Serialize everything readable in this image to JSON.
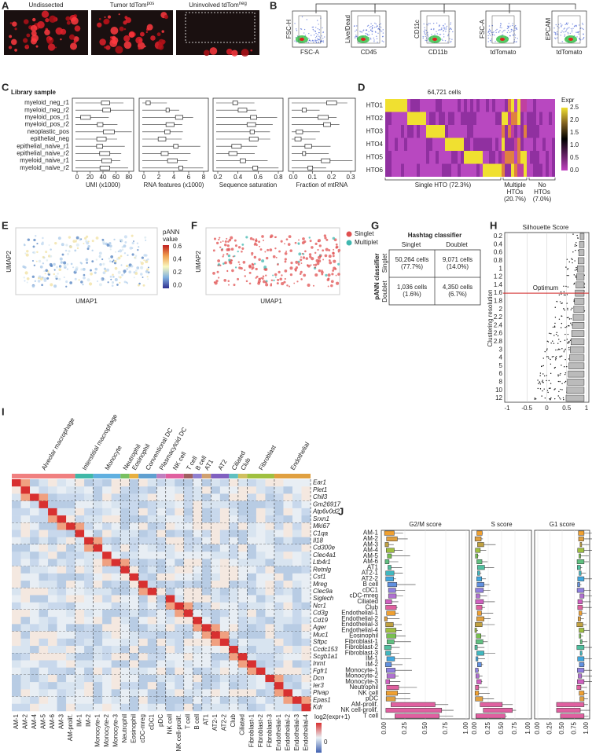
{
  "A": {
    "letter": "A",
    "labels": [
      {
        "text": "Undissected"
      },
      {
        "text": "Tumor tdTom",
        "sup": "pos"
      },
      {
        "text": "Uninvolved tdTom",
        "sup": "neg"
      }
    ]
  },
  "B": {
    "letter": "B",
    "plots": [
      {
        "y": "FSC-H",
        "x": "FSC-A"
      },
      {
        "y": "Live/Dead",
        "x": "CD45"
      },
      {
        "y": "CD11c",
        "x": "CD11b"
      },
      {
        "y": "FSC-A",
        "x": "tdTomato"
      },
      {
        "y": "EPCAM",
        "x": "tdTomato"
      }
    ]
  },
  "C": {
    "letter": "C",
    "title": "Library sample",
    "samples": [
      "myeloid_neg_r1",
      "myeloid_neg_r2",
      "myeloid_pos_r1",
      "myeloid_pos_r2",
      "neoplastic_pos",
      "epithelial_neg",
      "epithelial_naive_r1",
      "epithelial_naive_r2",
      "myeloid_naive_r1",
      "myeloid_naive_r2"
    ],
    "panels": [
      {
        "xlabel": "UMI (x1000)",
        "ticks": [
          "0",
          "20",
          "40",
          "60",
          "80"
        ]
      },
      {
        "xlabel": "RNA features (x1000)",
        "ticks": [
          "0",
          "2",
          "4",
          "6",
          "8"
        ]
      },
      {
        "xlabel": "Sequence saturation",
        "ticks": [
          "0.2",
          "0.4",
          "0.6",
          "0.8"
        ]
      },
      {
        "xlabel": "Fraction of mtRNA",
        "ticks": [
          "0.0",
          "0.1",
          "0.2",
          "0.3"
        ]
      }
    ]
  },
  "D": {
    "letter": "D",
    "title": "64,721 cells",
    "rows": [
      "HTO1",
      "HTO2",
      "HTO3",
      "HTO4",
      "HTO5",
      "HTO6"
    ],
    "legend_title": "Expr",
    "legend_ticks": [
      "2.5",
      "2.0",
      "1.5",
      "1.0",
      "0.5",
      "0.0"
    ],
    "groups": [
      [
        "Single HTO (72.3%)"
      ],
      [
        "Multiple",
        "HTOs",
        "(20.7%)"
      ],
      [
        "No",
        "HTOs",
        "(7.0%)"
      ]
    ]
  },
  "E": {
    "letter": "E",
    "legend_title": [
      "pANN",
      "value"
    ],
    "legend_ticks": [
      "0.6",
      "0.4",
      "0.2",
      "0.0"
    ],
    "xlabel": "UMAP1",
    "ylabel": "UMAP2"
  },
  "F": {
    "letter": "F",
    "legend": [
      "Singlet",
      "Multiplet"
    ],
    "xlabel": "UMAP1",
    "ylabel": "UMAP2"
  },
  "G": {
    "letter": "G",
    "col_title": "Hashtag classifier",
    "cols": [
      "Singlet",
      "Doublet"
    ],
    "row_title": "pANN classifier",
    "rows": [
      "Singlet",
      "Doublet"
    ],
    "cells": [
      [
        [
          "50,264 cells",
          "(77.7%)"
        ],
        [
          "9,071 cells",
          "(14.0%)"
        ]
      ],
      [
        [
          "1,036 cells",
          "(1.6%)"
        ],
        [
          "4,350 cells",
          "(6.7%)"
        ]
      ]
    ]
  },
  "H": {
    "letter": "H",
    "title": "Silhouette Score",
    "ylabel": "Clustering resolution",
    "yticks": [
      "0.2",
      "0.4",
      "0.6",
      "0.8",
      "1",
      "1.2",
      "1.4",
      "1.6",
      "1.8",
      "2",
      "2.2",
      "2.4",
      "2.6",
      "2.8",
      "3",
      "4",
      "5",
      "6",
      "8",
      "10",
      "12"
    ],
    "xticks": [
      "-1",
      "-0.5",
      "0",
      "0.5",
      "1"
    ],
    "annotation": "Optimum"
  },
  "I": {
    "letter": "I",
    "groups": [
      "Alveolar macrophage",
      "Interstitial macrophage",
      "Monocyte",
      "Neutrophil",
      "Eosinophil",
      "Conventional DC",
      "Plasmacytoid DC",
      "NK cell",
      "T cell",
      "B cell",
      "AT1",
      "AT2",
      "Ciliated",
      "Club",
      "Fibroblast",
      "Endothelial"
    ],
    "genes": [
      "Ear1",
      "Plet1",
      "Chil3",
      "Gm26917",
      "Atp6v0d2",
      "Srxn1",
      "Mki67",
      "C1qa",
      "Il18",
      "Cd300e",
      "Clec4a1",
      "Ltb4r1",
      "Retnlg",
      "Csf1",
      "Mreg",
      "Clec9a",
      "Siglech",
      "Ncr1",
      "Cd3g",
      "Cd19",
      "Ager",
      "Muc1",
      "Sftpc",
      "Ccdc153",
      "Scgb1a1",
      "Inmt",
      "Fgfr1",
      "Dcn",
      "Ier3",
      "Plvap",
      "Epas1",
      "Kdr"
    ],
    "clusters": [
      "AM-1",
      "AM-2",
      "AM-4",
      "AM-5",
      "AM-6",
      "AM-3",
      "AM-prolif.",
      "IM-1",
      "IM-2",
      "Monocyte-1",
      "Monocyte-2",
      "Monocyte-3",
      "Neutrophil",
      "Eosinophil",
      "cDC-mreg",
      "cDC1",
      "pDC",
      "NK cell",
      "NK cell-prolif.",
      "T cell",
      "B cell",
      "AT1",
      "AT2-1",
      "AT2-2",
      "Club",
      "Ciliated",
      "Fibroblast-1",
      "Fibroblast-2",
      "Fibroblast-3",
      "Endothelial-1",
      "Endothelial-2",
      "Endothelial-3",
      "Endothelial-4"
    ],
    "legend_title": "log2(expr+1)",
    "legend_ticks": [
      "0"
    ]
  },
  "J": {
    "letter": "J",
    "titles": [
      "G2/M score",
      "S score",
      "G1 score"
    ],
    "rows": [
      "AM-1",
      "AM-2",
      "AM-3",
      "AM-4",
      "AM-5",
      "AM-6",
      "AT1",
      "AT2-1",
      "AT2-2",
      "B cell",
      "cDC1",
      "cDC-mreg",
      "Ciliated",
      "Club",
      "Endothelial-1",
      "Endothelial-2",
      "Endothelial-3",
      "Endothelial-4",
      "Eosinophil",
      "Fibroblast-1",
      "Fibroblast-2",
      "Fibroblast-3",
      "IM-1",
      "IM-2",
      "Monocyte-1",
      "Monocyte-2",
      "Monocyte-3",
      "Neutrophil",
      "NK cell",
      "pDC",
      "AM-prolif.",
      "NK cell-prolif.",
      "T cell"
    ],
    "xticks": [
      "0.00",
      "0.25",
      "0.50",
      "0.75",
      "1.00"
    ]
  }
}
